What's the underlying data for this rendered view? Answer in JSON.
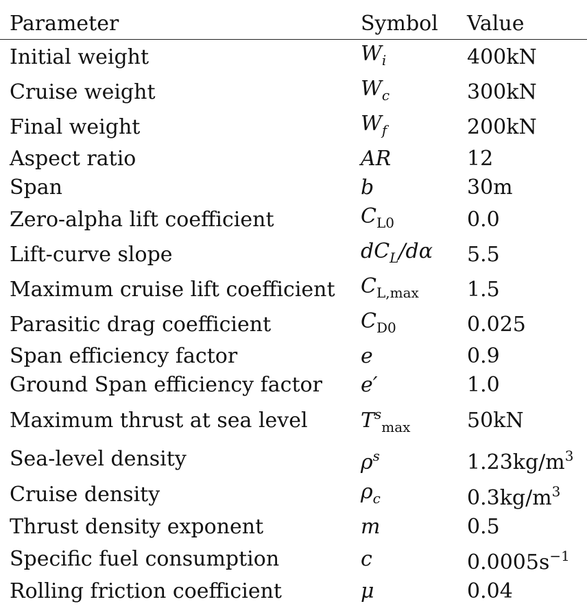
{
  "headers": {
    "parameter": "Parameter",
    "symbol": "Symbol",
    "value": "Value"
  },
  "rows": [
    {
      "parameter": "Initial weight",
      "symbol": "W",
      "symbol_sub": "i",
      "value": "400kN"
    },
    {
      "parameter": "Cruise weight",
      "symbol": "W",
      "symbol_sub": "c",
      "value": "300kN"
    },
    {
      "parameter": "Final weight",
      "symbol": "W",
      "symbol_sub": "f",
      "value": "200kN"
    },
    {
      "parameter": "Aspect ratio",
      "symbol": "AR",
      "value": "12"
    },
    {
      "parameter": "Span",
      "symbol": "b",
      "value": "30m"
    },
    {
      "parameter": "Zero-alpha lift coefficient",
      "symbol": "C",
      "symbol_sub": "L0",
      "value": "0.0"
    },
    {
      "parameter": "Lift-curve slope",
      "symbol": "dC",
      "symbol_sub": "L",
      "symbol_tail": "/dα",
      "value": "5.5"
    },
    {
      "parameter": "Maximum cruise lift coefficient",
      "symbol": "C",
      "symbol_sub": "L,max",
      "value": "1.5"
    },
    {
      "parameter": "Parasitic drag coefficient",
      "symbol": "C",
      "symbol_sub": "D0",
      "value": "0.025"
    },
    {
      "parameter": "Span efficiency factor",
      "symbol": "e",
      "value": "0.9"
    },
    {
      "parameter": "Ground Span efficiency factor",
      "symbol": "e′",
      "value": "1.0"
    },
    {
      "parameter": "Maximum thrust at sea level",
      "symbol": "T",
      "symbol_sup": "s",
      "symbol_sub": "max",
      "value": "50kN"
    },
    {
      "parameter": "Sea-level density",
      "symbol": "ρ",
      "symbol_sup": "s",
      "value": "1.23kg/m",
      "value_sup": "3"
    },
    {
      "parameter": "Cruise density",
      "symbol": "ρ",
      "symbol_sub": "c",
      "value": "0.3kg/m",
      "value_sup": "3"
    },
    {
      "parameter": "Thrust density exponent",
      "symbol": "m",
      "value": "0.5"
    },
    {
      "parameter": "Specific fuel consumption",
      "symbol": "c",
      "value": "0.0005s",
      "value_sup": "−1"
    },
    {
      "parameter": "Rolling friction coefficient",
      "symbol": "μ",
      "value": "0.04"
    }
  ]
}
